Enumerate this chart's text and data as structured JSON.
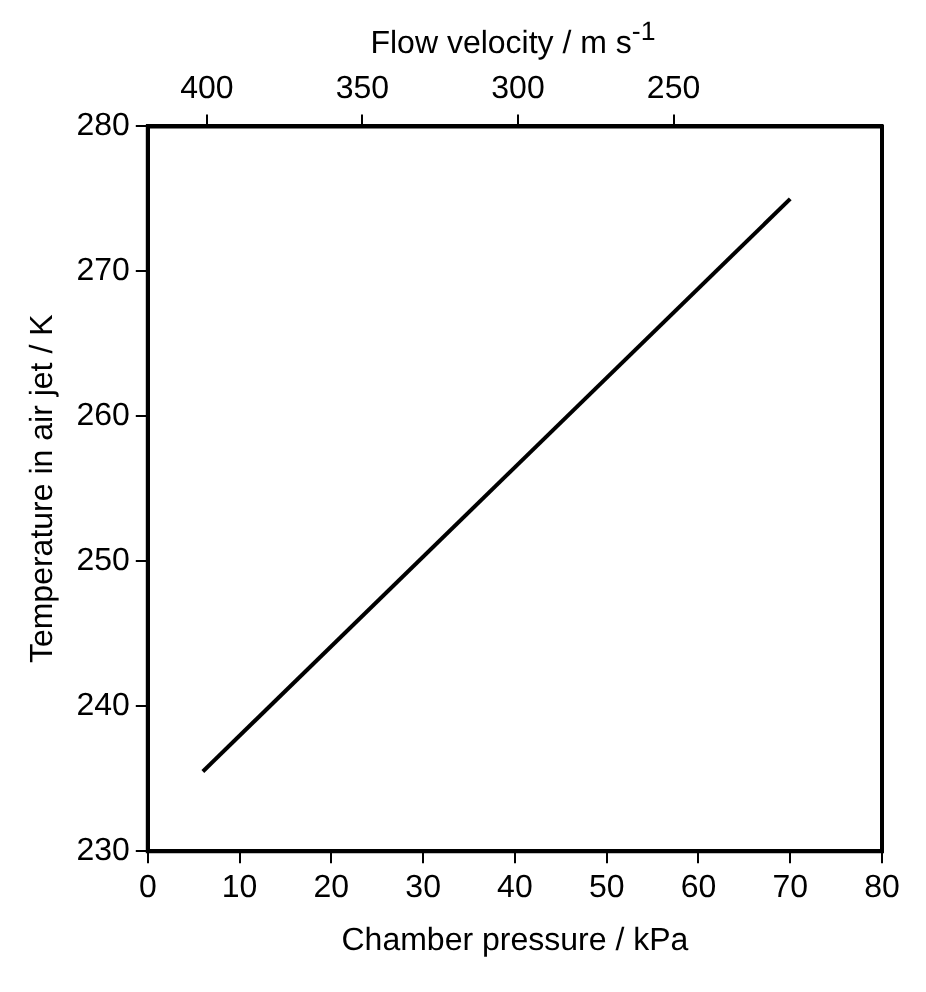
{
  "chart_data": {
    "type": "line",
    "xlabel": "Chamber pressure / kPa",
    "ylabel": "Temperature in air jet / K",
    "x2label": "Flow velocity / m s$^{-1}$",
    "series": [
      {
        "color": "#000000",
        "x": [
          6,
          70
        ],
        "values": [
          235.5,
          275
        ]
      }
    ],
    "xlim": [
      0,
      80
    ],
    "xticks": [
      0,
      10,
      20,
      30,
      40,
      50,
      60,
      70,
      80
    ],
    "x2lim": [
      419,
      183
    ],
    "x2ticks": [
      400,
      350,
      300,
      250
    ],
    "ylim": [
      230,
      280
    ],
    "yticks": [
      230,
      240,
      250,
      260,
      270,
      280
    ],
    "grid": false,
    "legend": false,
    "marker": "none",
    "line_style": "solid"
  }
}
